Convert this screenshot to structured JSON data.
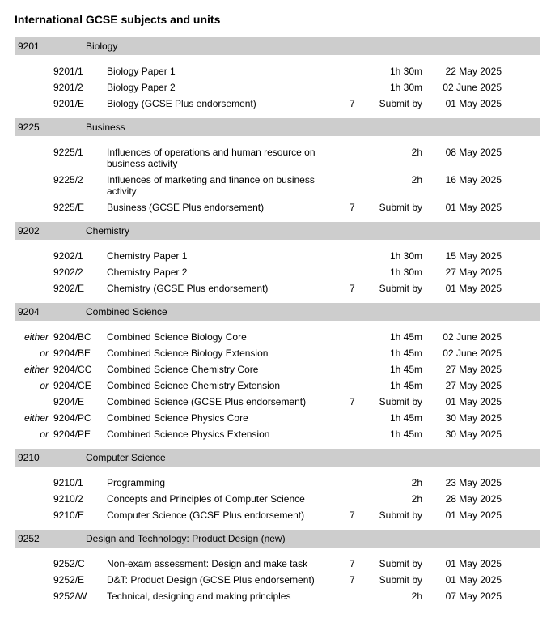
{
  "title": "International GCSE subjects and units",
  "colors": {
    "header_bg": "#cdcdcd",
    "text": "#000000",
    "page_bg": "#ffffff"
  },
  "fonts": {
    "family": "Arial, Helvetica, sans-serif",
    "title_size_pt": 14,
    "body_size_pt": 12
  },
  "subjects": [
    {
      "code": "9201",
      "name": "Biology",
      "units": [
        {
          "prefix": "",
          "code": "9201/1",
          "name": "Biology Paper 1",
          "note": "",
          "duration": "1h 30m",
          "date": "22 May 2025"
        },
        {
          "prefix": "",
          "code": "9201/2",
          "name": "Biology Paper 2",
          "note": "",
          "duration": "1h 30m",
          "date": "02 June 2025"
        },
        {
          "prefix": "",
          "code": "9201/E",
          "name": "Biology (GCSE Plus endorsement)",
          "note": "7",
          "duration": "Submit by",
          "date": "01 May 2025"
        }
      ]
    },
    {
      "code": "9225",
      "name": "Business",
      "units": [
        {
          "prefix": "",
          "code": "9225/1",
          "name": "Influences of operations and human resource on business activity",
          "note": "",
          "duration": "2h",
          "date": "08 May 2025"
        },
        {
          "prefix": "",
          "code": "9225/2",
          "name": "Influences of marketing and finance on business activity",
          "note": "",
          "duration": "2h",
          "date": "16 May 2025"
        },
        {
          "prefix": "",
          "code": "9225/E",
          "name": "Business (GCSE Plus endorsement)",
          "note": "7",
          "duration": "Submit by",
          "date": "01 May 2025"
        }
      ]
    },
    {
      "code": "9202",
      "name": "Chemistry",
      "units": [
        {
          "prefix": "",
          "code": "9202/1",
          "name": "Chemistry Paper 1",
          "note": "",
          "duration": "1h 30m",
          "date": "15 May 2025"
        },
        {
          "prefix": "",
          "code": "9202/2",
          "name": "Chemistry Paper 2",
          "note": "",
          "duration": "1h 30m",
          "date": "27 May 2025"
        },
        {
          "prefix": "",
          "code": "9202/E",
          "name": "Chemistry (GCSE Plus endorsement)",
          "note": "7",
          "duration": "Submit by",
          "date": "01 May 2025"
        }
      ]
    },
    {
      "code": "9204",
      "name": "Combined Science",
      "units": [
        {
          "prefix": "either",
          "code": "9204/BC",
          "name": "Combined Science Biology Core",
          "note": "",
          "duration": "1h 45m",
          "date": "02 June 2025"
        },
        {
          "prefix": "or",
          "code": "9204/BE",
          "name": "Combined Science Biology Extension",
          "note": "",
          "duration": "1h 45m",
          "date": "02 June 2025"
        },
        {
          "prefix": "either",
          "code": "9204/CC",
          "name": "Combined Science Chemistry Core",
          "note": "",
          "duration": "1h 45m",
          "date": "27 May 2025"
        },
        {
          "prefix": "or",
          "code": "9204/CE",
          "name": "Combined Science Chemistry Extension",
          "note": "",
          "duration": "1h 45m",
          "date": "27 May 2025"
        },
        {
          "prefix": "",
          "code": "9204/E",
          "name": "Combined Science (GCSE Plus endorsement)",
          "note": "7",
          "duration": "Submit by",
          "date": "01 May 2025"
        },
        {
          "prefix": "either",
          "code": "9204/PC",
          "name": "Combined Science Physics Core",
          "note": "",
          "duration": "1h 45m",
          "date": "30 May 2025"
        },
        {
          "prefix": "or",
          "code": "9204/PE",
          "name": "Combined Science Physics Extension",
          "note": "",
          "duration": "1h 45m",
          "date": "30 May 2025"
        }
      ]
    },
    {
      "code": "9210",
      "name": "Computer Science",
      "units": [
        {
          "prefix": "",
          "code": "9210/1",
          "name": "Programming",
          "note": "",
          "duration": "2h",
          "date": "23 May 2025"
        },
        {
          "prefix": "",
          "code": "9210/2",
          "name": "Concepts and Principles of Computer Science",
          "note": "",
          "duration": "2h",
          "date": "28 May 2025"
        },
        {
          "prefix": "",
          "code": "9210/E",
          "name": "Computer Science (GCSE Plus endorsement)",
          "note": "7",
          "duration": "Submit by",
          "date": "01 May 2025"
        }
      ]
    },
    {
      "code": "9252",
      "name": "Design and Technology: Product Design (new)",
      "units": [
        {
          "prefix": "",
          "code": "9252/C",
          "name": "Non-exam assessment: Design and make task",
          "note": "7",
          "duration": "Submit by",
          "date": "01 May 2025"
        },
        {
          "prefix": "",
          "code": "9252/E",
          "name": "D&T: Product Design (GCSE Plus endorsement)",
          "note": "7",
          "duration": "Submit by",
          "date": "01 May 2025"
        },
        {
          "prefix": "",
          "code": "9252/W",
          "name": "Technical, designing and making principles",
          "note": "",
          "duration": "2h",
          "date": "07 May 2025"
        }
      ]
    }
  ]
}
